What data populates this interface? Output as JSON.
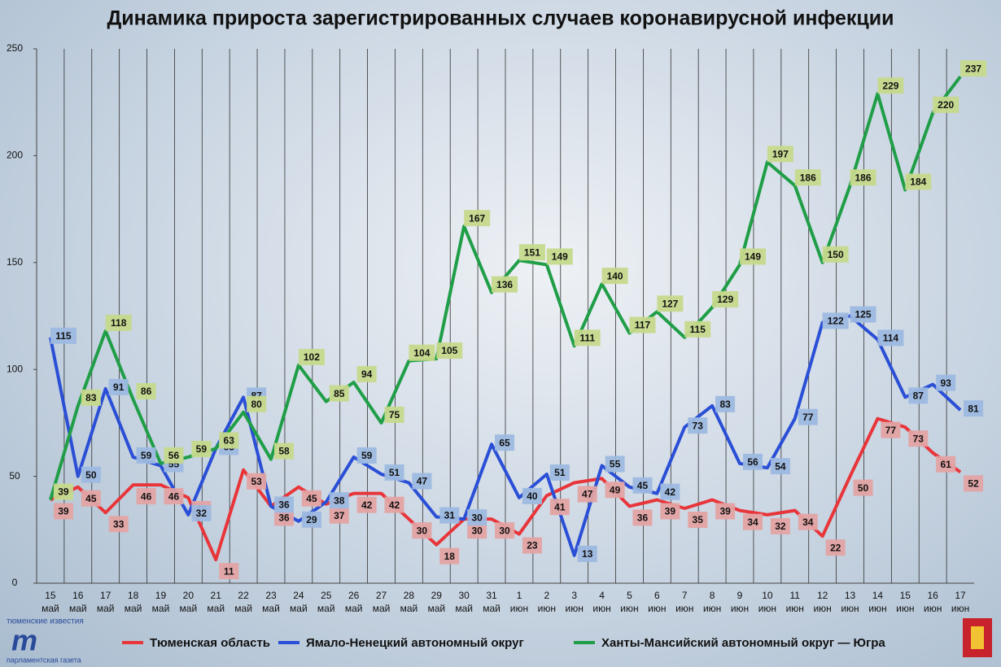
{
  "chart_data": {
    "type": "line",
    "title": "Динамика прироста зарегистрированных случаев коронавирусной инфекции",
    "categories": [
      "15 май",
      "16 май",
      "17 май",
      "18 май",
      "19 май",
      "20 май",
      "21 май",
      "22 май",
      "23 май",
      "24 май",
      "25 май",
      "26 май",
      "27 май",
      "28 май",
      "29 май",
      "30 май",
      "31 май",
      "1 июн",
      "2 июн",
      "3 июн",
      "4 июн",
      "5 июн",
      "6 июн",
      "7 июн",
      "8 июн",
      "9 июн",
      "10 июн",
      "11 июн",
      "12 июн",
      "13 июн",
      "14 июн",
      "15 июн",
      "16 июн",
      "17 июн"
    ],
    "series": [
      {
        "name": "Тюменская область",
        "color": "#e8353a",
        "label_color": "#e3a3a3",
        "values": [
          39,
          45,
          33,
          46,
          46,
          40,
          11,
          53,
          36,
          45,
          37,
          42,
          42,
          30,
          18,
          30,
          30,
          23,
          41,
          47,
          49,
          36,
          39,
          35,
          39,
          34,
          32,
          34,
          22,
          50,
          77,
          73,
          61,
          52
        ]
      },
      {
        "name": "Ямало-Ненецкий автономный округ",
        "color": "#2a4fd6",
        "label_color": "#9db9e0",
        "values": [
          115,
          50,
          91,
          59,
          55,
          32,
          63,
          87,
          36,
          29,
          38,
          59,
          51,
          47,
          31,
          30,
          65,
          40,
          51,
          13,
          55,
          45,
          42,
          73,
          83,
          56,
          54,
          77,
          122,
          125,
          114,
          87,
          93,
          81
        ]
      },
      {
        "name": "Ханты-Мансийский автономный округ — Югра",
        "color": "#1f9e47",
        "label_color": "#c6d98c",
        "values": [
          39,
          83,
          118,
          86,
          56,
          59,
          63,
          80,
          58,
          102,
          85,
          94,
          75,
          104,
          105,
          167,
          136,
          151,
          149,
          111,
          140,
          117,
          127,
          115,
          129,
          149,
          197,
          186,
          150,
          186,
          229,
          184,
          220,
          237
        ]
      }
    ],
    "ylim": [
      0,
      250
    ],
    "yticks": [
      0,
      50,
      100,
      150,
      200,
      250
    ],
    "grid": true,
    "annotations": [
      "тюменские известия",
      "парламентская газета"
    ]
  }
}
